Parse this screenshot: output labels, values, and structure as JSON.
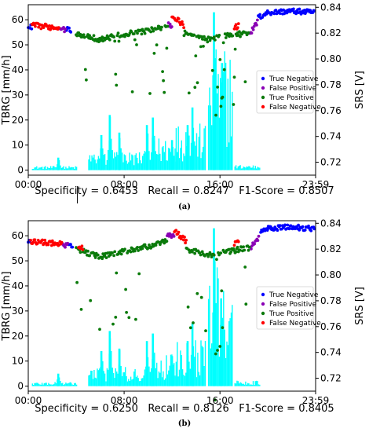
{
  "colors": {
    "rain_bars": "#00ffff",
    "true_negative": "#0000ff",
    "false_positive": "#8a00b5",
    "true_positive": "#0a7a0a",
    "false_negative": "#ff0000",
    "frame": "#000000",
    "marker_line": "#000000"
  },
  "chart_data": [
    {
      "panel": "a",
      "caption": "(a)",
      "metrics": {
        "specificity": "Specificity = 0.6453",
        "recall": "Recall = 0.8247",
        "f1": "F1-Score = 0.8507"
      },
      "type": "scatter",
      "title": "",
      "xlabel": "",
      "ylabel_left": "TBRG [mm/h]",
      "ylabel_right": "SRS [V]",
      "x_ticks": [
        "00:00",
        "08:00",
        "16:00",
        "23:59"
      ],
      "x_range_hours": [
        0,
        23.983
      ],
      "y_left_ticks": [
        0,
        10,
        20,
        30,
        40,
        50,
        60
      ],
      "y_left_range": [
        -2,
        66
      ],
      "y_right_ticks": [
        "0.72",
        "0.74",
        "0.76",
        "0.78",
        "0.80",
        "0.82",
        "0.84"
      ],
      "y_right_range": [
        0.71,
        0.842
      ],
      "legend": {
        "placement": "right",
        "entries": [
          "True Negative",
          "False Positive",
          "True Positive",
          "False Negative"
        ]
      },
      "grid": false,
      "dashed_marker_hour": 4.1,
      "rain_bars": {
        "description_groups": [
          {
            "from_hour": 0.3,
            "to_hour": 4.0,
            "level_mm_h": 1.5
          },
          {
            "from_hour": 5.0,
            "to_hour": 10.5,
            "level_mm_h": 7
          },
          {
            "from_hour": 10.5,
            "to_hour": 12.3,
            "level_mm_h": 12
          },
          {
            "from_hour": 12.3,
            "to_hour": 14.8,
            "level_mm_h": 17
          },
          {
            "from_hour": 15.0,
            "to_hour": 17.0,
            "level_mm_h": 45
          },
          {
            "from_hour": 17.2,
            "to_hour": 19.3,
            "level_mm_h": 2
          }
        ],
        "peaks": [
          {
            "hour": 2.5,
            "mm_h": 5
          },
          {
            "hour": 6.1,
            "mm_h": 14
          },
          {
            "hour": 6.8,
            "mm_h": 22
          },
          {
            "hour": 7.6,
            "mm_h": 15
          },
          {
            "hour": 9.9,
            "mm_h": 18
          },
          {
            "hour": 10.4,
            "mm_h": 21
          },
          {
            "hour": 12.0,
            "mm_h": 12
          },
          {
            "hour": 13.3,
            "mm_h": 18
          },
          {
            "hour": 13.7,
            "mm_h": 25
          },
          {
            "hour": 15.5,
            "mm_h": 63
          },
          {
            "hour": 16.1,
            "mm_h": 35
          }
        ]
      },
      "series": [
        {
          "name": "True Negative",
          "segments": [
            {
              "from": 0.0,
              "to": 0.3
            },
            {
              "from": 3.2,
              "to": 3.6
            },
            {
              "from": 19.2,
              "to": 23.9
            }
          ],
          "srs_profile": [
            [
              0.0,
              0.826
            ],
            [
              0.3,
              0.824
            ],
            [
              3.2,
              0.823
            ],
            [
              3.6,
              0.822
            ],
            [
              19.2,
              0.832
            ],
            [
              20.0,
              0.836
            ],
            [
              22.0,
              0.837
            ],
            [
              23.9,
              0.836
            ]
          ]
        },
        {
          "name": "False Positive",
          "segments": [
            {
              "from": 2.6,
              "to": 3.1
            },
            {
              "from": 11.7,
              "to": 12.0
            },
            {
              "from": 18.5,
              "to": 19.2
            }
          ],
          "srs_profile": [
            [
              2.6,
              0.823
            ],
            [
              3.1,
              0.823
            ],
            [
              11.7,
              0.828
            ],
            [
              12.0,
              0.824
            ],
            [
              18.5,
              0.82
            ],
            [
              19.2,
              0.83
            ]
          ]
        },
        {
          "name": "True Positive",
          "segments": [
            {
              "from": 4.0,
              "to": 11.7
            },
            {
              "from": 13.0,
              "to": 18.4
            }
          ],
          "srs_profile": [
            [
              4.0,
              0.82
            ],
            [
              6.0,
              0.815
            ],
            [
              8.0,
              0.819
            ],
            [
              10.0,
              0.822
            ],
            [
              11.7,
              0.825
            ],
            [
              13.0,
              0.82
            ],
            [
              15.0,
              0.815
            ],
            [
              16.5,
              0.818
            ],
            [
              18.4,
              0.82
            ]
          ]
        },
        {
          "name": "False Negative",
          "segments": [
            {
              "from": 0.3,
              "to": 2.6
            },
            {
              "from": 12.0,
              "to": 13.0
            },
            {
              "from": 17.2,
              "to": 17.6
            }
          ],
          "srs_profile": [
            [
              0.3,
              0.826
            ],
            [
              1.5,
              0.825
            ],
            [
              2.6,
              0.824
            ],
            [
              12.0,
              0.834
            ],
            [
              13.0,
              0.826
            ],
            [
              17.2,
              0.824
            ],
            [
              17.6,
              0.826
            ]
          ]
        }
      ]
    },
    {
      "panel": "b",
      "caption": "(b)",
      "metrics": {
        "specificity": "Specificity = 0.6250",
        "recall": "Recall = 0.8126",
        "f1": "F1-Score = 0.8405"
      },
      "type": "scatter",
      "title": "",
      "xlabel": "",
      "ylabel_left": "TBRG [mm/h]",
      "ylabel_right": "SRS [V]",
      "x_ticks": [
        "00:00",
        "08:00",
        "16:00",
        "23:59"
      ],
      "x_range_hours": [
        0,
        23.983
      ],
      "y_left_ticks": [
        0,
        10,
        20,
        30,
        40,
        50,
        60
      ],
      "y_left_range": [
        -2,
        66
      ],
      "y_right_ticks": [
        "0.72",
        "0.74",
        "0.76",
        "0.78",
        "0.80",
        "0.82",
        "0.84"
      ],
      "y_right_range": [
        0.71,
        0.842
      ],
      "legend": {
        "placement": "right",
        "entries": [
          "True Negative",
          "False Positive",
          "True Positive",
          "False Negative"
        ]
      },
      "grid": false,
      "dashed_marker_hour": null,
      "rain_bars": {
        "description_groups": [
          {
            "from_hour": 0.3,
            "to_hour": 4.0,
            "level_mm_h": 1.5
          },
          {
            "from_hour": 5.0,
            "to_hour": 10.5,
            "level_mm_h": 7
          },
          {
            "from_hour": 10.5,
            "to_hour": 12.3,
            "level_mm_h": 12
          },
          {
            "from_hour": 12.3,
            "to_hour": 14.8,
            "level_mm_h": 17
          },
          {
            "from_hour": 15.0,
            "to_hour": 17.0,
            "level_mm_h": 45
          },
          {
            "from_hour": 17.2,
            "to_hour": 19.3,
            "level_mm_h": 2
          }
        ],
        "peaks": [
          {
            "hour": 2.5,
            "mm_h": 5
          },
          {
            "hour": 6.1,
            "mm_h": 14
          },
          {
            "hour": 6.8,
            "mm_h": 22
          },
          {
            "hour": 7.6,
            "mm_h": 15
          },
          {
            "hour": 9.9,
            "mm_h": 18
          },
          {
            "hour": 10.4,
            "mm_h": 21
          },
          {
            "hour": 12.0,
            "mm_h": 12
          },
          {
            "hour": 13.3,
            "mm_h": 18
          },
          {
            "hour": 13.7,
            "mm_h": 25
          },
          {
            "hour": 15.5,
            "mm_h": 63
          },
          {
            "hour": 16.1,
            "mm_h": 35
          }
        ]
      },
      "series": [
        {
          "name": "True Negative",
          "segments": [
            {
              "from": 0.0,
              "to": 0.2
            },
            {
              "from": 3.4,
              "to": 3.7
            },
            {
              "from": 19.4,
              "to": 23.9
            }
          ],
          "srs_profile": [
            [
              0.0,
              0.826
            ],
            [
              0.2,
              0.824
            ],
            [
              3.4,
              0.823
            ],
            [
              3.7,
              0.822
            ],
            [
              19.4,
              0.833
            ],
            [
              20.0,
              0.836
            ],
            [
              22.0,
              0.837
            ],
            [
              23.9,
              0.836
            ]
          ]
        },
        {
          "name": "False Positive",
          "segments": [
            {
              "from": 2.8,
              "to": 3.3
            },
            {
              "from": 11.6,
              "to": 12.2
            },
            {
              "from": 18.6,
              "to": 19.3
            }
          ],
          "srs_profile": [
            [
              2.8,
              0.823
            ],
            [
              3.3,
              0.823
            ],
            [
              11.6,
              0.83
            ],
            [
              12.2,
              0.83
            ],
            [
              18.6,
              0.822
            ],
            [
              19.3,
              0.83
            ]
          ]
        },
        {
          "name": "True Positive",
          "segments": [
            {
              "from": 4.0,
              "to": 11.6
            },
            {
              "from": 13.2,
              "to": 18.5
            }
          ],
          "srs_profile": [
            [
              4.0,
              0.82
            ],
            [
              6.0,
              0.814
            ],
            [
              8.0,
              0.818
            ],
            [
              10.0,
              0.822
            ],
            [
              11.6,
              0.826
            ],
            [
              13.2,
              0.82
            ],
            [
              15.0,
              0.815
            ],
            [
              16.5,
              0.818
            ],
            [
              18.5,
              0.821
            ]
          ]
        },
        {
          "name": "False Negative",
          "segments": [
            {
              "from": 0.2,
              "to": 2.8
            },
            {
              "from": 4.2,
              "to": 4.6
            },
            {
              "from": 12.2,
              "to": 13.2
            },
            {
              "from": 17.2,
              "to": 17.6
            }
          ],
          "srs_profile": [
            [
              0.2,
              0.826
            ],
            [
              1.5,
              0.825
            ],
            [
              2.8,
              0.824
            ],
            [
              4.2,
              0.82
            ],
            [
              4.6,
              0.821
            ],
            [
              12.2,
              0.834
            ],
            [
              13.2,
              0.826
            ],
            [
              17.2,
              0.824
            ],
            [
              17.6,
              0.826
            ]
          ]
        }
      ]
    }
  ]
}
